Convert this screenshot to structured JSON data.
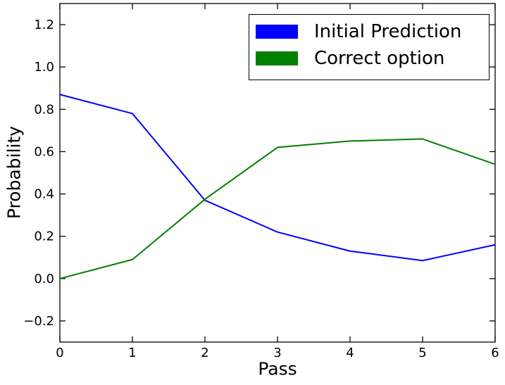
{
  "figure": {
    "background": "#ffffff",
    "axis_color": "#000000"
  },
  "chart_data": {
    "type": "line",
    "title": "",
    "xlabel": "Pass",
    "ylabel": "Probability",
    "x": [
      0,
      1,
      2,
      3,
      4,
      5,
      6
    ],
    "series": [
      {
        "name": "Initial Prediction",
        "color": "#0000ff",
        "values": [
          0.87,
          0.78,
          0.37,
          0.22,
          0.13,
          0.085,
          0.16
        ]
      },
      {
        "name": "Correct option",
        "color": "#008000",
        "values": [
          0.0,
          0.09,
          0.375,
          0.62,
          0.65,
          0.66,
          0.54
        ]
      }
    ],
    "xlim": [
      0,
      6
    ],
    "ylim": [
      -0.3,
      1.3
    ],
    "xticks": [
      0,
      1,
      2,
      3,
      4,
      5,
      6
    ],
    "xtick_labels": [
      "0",
      "1",
      "2",
      "3",
      "4",
      "5",
      "6"
    ],
    "yticks": [
      -0.2,
      0.0,
      0.2,
      0.4,
      0.6,
      0.8,
      1.0,
      1.2
    ],
    "ytick_labels": [
      "−0.2",
      "0.0",
      "0.2",
      "0.4",
      "0.6",
      "0.8",
      "1.0",
      "1.2"
    ],
    "grid": false,
    "legend": {
      "position": "upper right",
      "entries": [
        "Initial Prediction",
        "Correct option"
      ]
    }
  }
}
